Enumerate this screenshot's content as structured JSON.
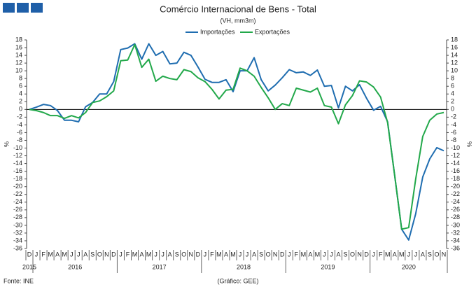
{
  "chart_data": {
    "type": "line",
    "title": "Comércio Internacional de Bens - Total",
    "subtitle": "(VH, mm3m)",
    "y_label": "%",
    "source": "Fonte: INE",
    "credit": "(Gráfico: GEE)",
    "categories": [
      "D",
      "J",
      "F",
      "M",
      "A",
      "M",
      "J",
      "J",
      "A",
      "S",
      "O",
      "N",
      "D",
      "J",
      "F",
      "M",
      "A",
      "M",
      "J",
      "J",
      "A",
      "S",
      "O",
      "N",
      "D",
      "J",
      "F",
      "M",
      "A",
      "M",
      "J",
      "J",
      "A",
      "S",
      "O",
      "N",
      "D",
      "J",
      "F",
      "M",
      "A",
      "M",
      "J",
      "J",
      "A",
      "S",
      "O",
      "N",
      "D",
      "J",
      "F",
      "M",
      "A",
      "M",
      "J",
      "J",
      "A",
      "S",
      "O",
      "N"
    ],
    "years": [
      "2015",
      "2016",
      "2017",
      "2018",
      "2019",
      "2020"
    ],
    "series": [
      {
        "name": "Importações",
        "color": "#1f6db0",
        "values": [
          0,
          0.6,
          1.3,
          1.0,
          -0.3,
          -2.8,
          -2.8,
          -3.2,
          0.7,
          1.8,
          4.0,
          4.0,
          7.2,
          15.5,
          15.9,
          17.0,
          13.0,
          17.0,
          14.0,
          15.0,
          11.8,
          12.0,
          14.8,
          14.0,
          11.0,
          7.8,
          7.0,
          7.0,
          7.7,
          4.6,
          10.0,
          10.0,
          13.4,
          7.7,
          4.8,
          6.3,
          8.2,
          10.3,
          9.5,
          9.7,
          8.8,
          10.2,
          6.0,
          6.2,
          0.4,
          6.0,
          4.8,
          6.4,
          2.9,
          -0.2,
          0.8,
          -3.2,
          -17,
          -31,
          -33.8,
          -27,
          -17.5,
          -12.8,
          -9.9,
          -10.7
        ]
      },
      {
        "name": "Exportações",
        "color": "#22a84a",
        "values": [
          0,
          -0.3,
          -0.8,
          -1.6,
          -1.6,
          -2.3,
          -1.6,
          -2.2,
          -0.8,
          1.8,
          2.2,
          3.3,
          4.8,
          12.6,
          12.8,
          16.8,
          10.9,
          13.0,
          7.3,
          8.6,
          8.0,
          7.7,
          10.3,
          9.8,
          8.2,
          7.2,
          5.2,
          2.7,
          5.0,
          5.2,
          10.7,
          10.0,
          8.6,
          5.7,
          3.0,
          0,
          1.5,
          1.0,
          5.5,
          5.0,
          4.5,
          5.5,
          1.0,
          0.6,
          -3.7,
          1.2,
          3.6,
          7.4,
          7.1,
          5.8,
          3.2,
          -3.4,
          -17,
          -31,
          -30.6,
          -18,
          -7,
          -2.8,
          -1.2,
          -0.8
        ]
      }
    ],
    "ylim": [
      -36,
      18
    ],
    "yticks": [
      -36,
      -34,
      -32,
      -30,
      -28,
      -26,
      -24,
      -22,
      -20,
      -18,
      -16,
      -14,
      -12,
      -10,
      -8,
      -6,
      -4,
      -2,
      0,
      2,
      4,
      6,
      8,
      10,
      12,
      14,
      16,
      18
    ]
  }
}
